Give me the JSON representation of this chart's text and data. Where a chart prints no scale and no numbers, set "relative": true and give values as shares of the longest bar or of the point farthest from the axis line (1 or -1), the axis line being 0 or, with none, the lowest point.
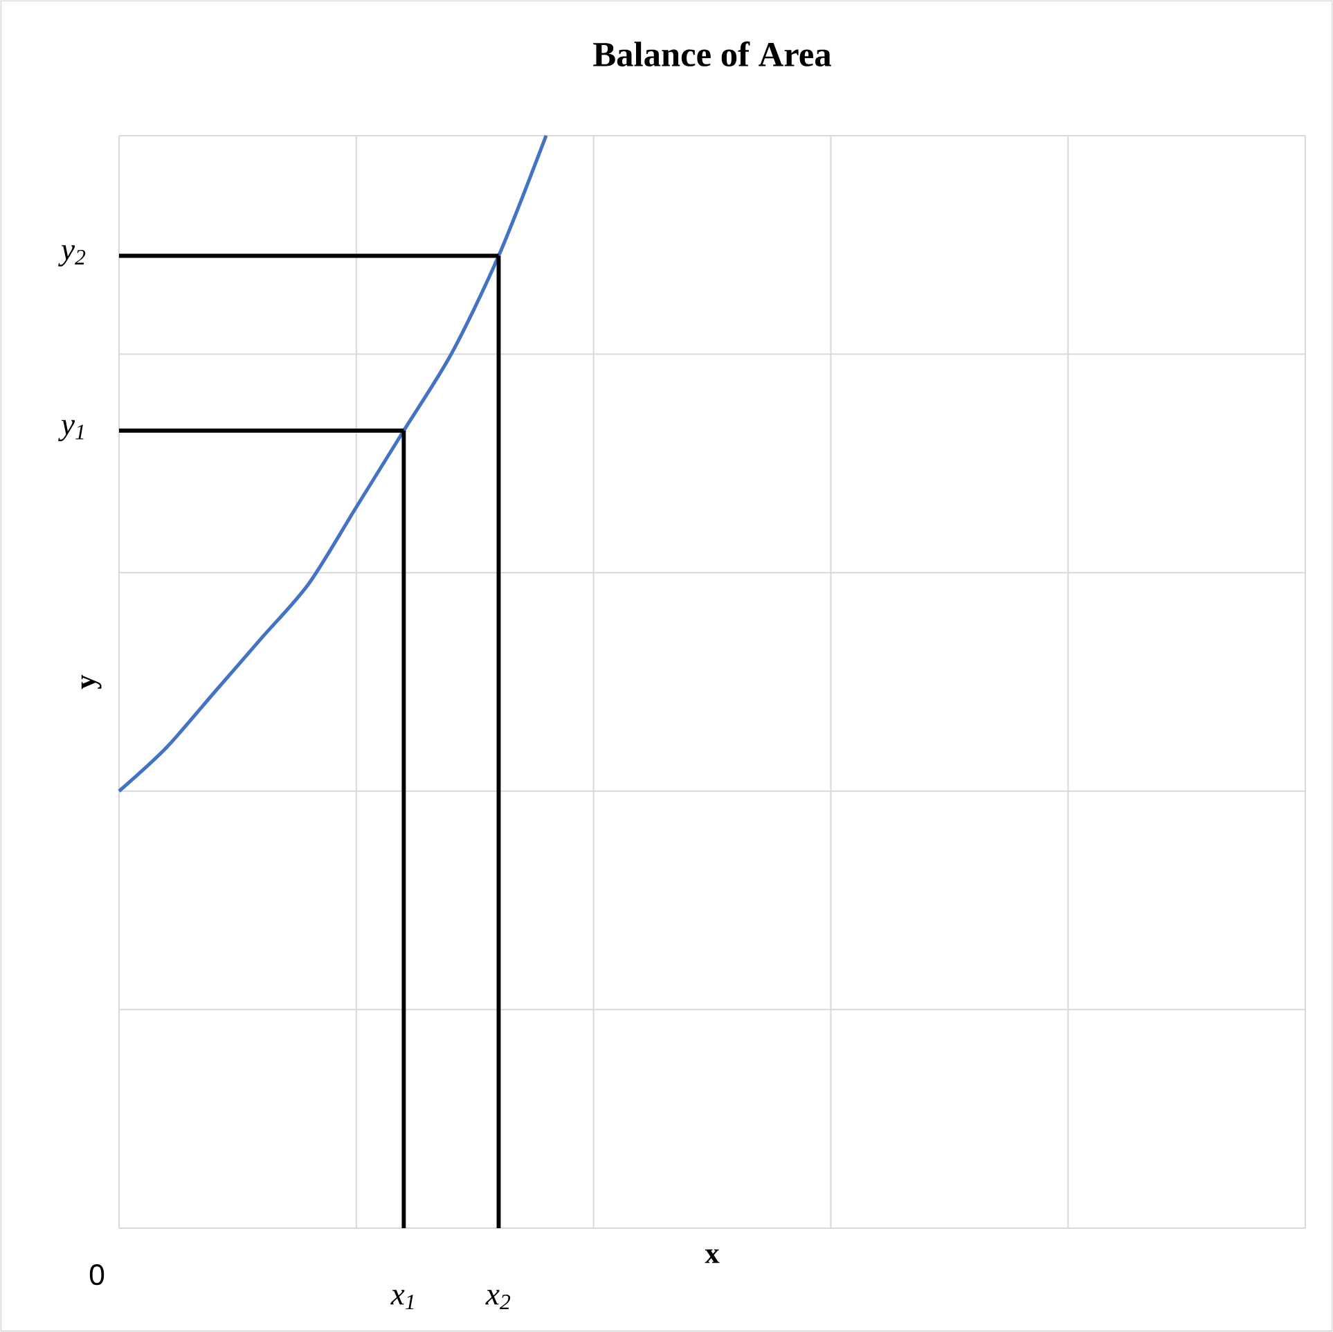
{
  "chart_data": {
    "type": "line",
    "title": "Balance of Area",
    "xlabel": "x",
    "ylabel": "y",
    "relative": true,
    "color": "#4472c4",
    "categories": [
      null,
      null,
      null,
      null,
      null,
      null,
      "x$_{1}$",
      null,
      "x$_{2}$",
      null,
      null,
      null,
      null,
      null,
      null,
      null,
      null,
      null,
      null,
      null,
      null,
      null,
      null,
      null,
      null,
      null
    ],
    "values": [
      0.4,
      0.44,
      0.49,
      0.54,
      0.59,
      0.66,
      0.73,
      0.8,
      0.89,
      1.0,
      null,
      null,
      null,
      null,
      null,
      null,
      null,
      null,
      null,
      null,
      null,
      null,
      null,
      null,
      null,
      null
    ],
    "annotations": [
      "0"
    ],
    "ref_lines": [
      {
        "axis": "y",
        "value": 0.73,
        "label": "y$_{1}$",
        "color": "#000000"
      },
      {
        "axis": "y",
        "value": 0.89,
        "label": "y$_{2}$",
        "color": "#000000"
      }
    ],
    "grid": true
  }
}
